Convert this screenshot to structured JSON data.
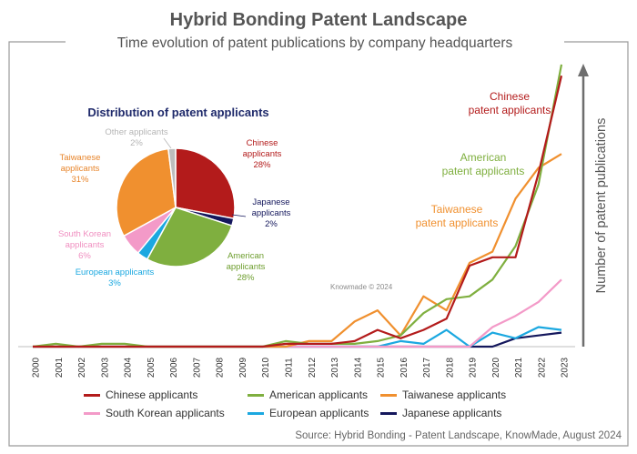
{
  "title": "Hybrid Bonding Patent Landscape",
  "subtitle": "Time evolution of patent publications by company headquarters",
  "source": "Source: Hybrid Bonding - Patent Landscape, KnowMade, August 2024",
  "watermark": "Knowmade © 2024",
  "colors": {
    "chinese": "#B31B1B",
    "american": "#7FAF3F",
    "taiwanese": "#F0902F",
    "south_korean": "#F39AC8",
    "european": "#1BA8E0",
    "japanese": "#14175C",
    "other": "#BDBDBD"
  },
  "chart_data": [
    {
      "type": "line",
      "title": "Time evolution of patent publications by company headquarters",
      "ylabel": "Number of patent publications",
      "xlabel": "",
      "x": [
        "2000",
        "2001",
        "2002",
        "2003",
        "2004",
        "2005",
        "2006",
        "2007",
        "2008",
        "2009",
        "2010",
        "2011",
        "2012",
        "2013",
        "2014",
        "2015",
        "2016",
        "2017",
        "2018",
        "2019",
        "2020",
        "2021",
        "2022",
        "2023"
      ],
      "ylim": [
        0,
        100
      ],
      "series": [
        {
          "name": "Chinese applicants",
          "key": "chinese",
          "values": [
            0,
            0,
            0,
            0,
            0,
            0,
            0,
            0,
            0,
            0,
            0,
            1,
            1,
            1,
            2,
            6,
            3,
            6,
            10,
            29,
            32,
            32,
            62,
            97
          ]
        },
        {
          "name": "American applicants",
          "key": "american",
          "values": [
            0,
            1,
            0,
            1,
            1,
            0,
            0,
            0,
            0,
            0,
            0,
            2,
            1,
            1,
            1,
            2,
            4,
            12,
            17,
            18,
            24,
            36,
            58,
            101
          ]
        },
        {
          "name": "Taiwanese applicants",
          "key": "taiwanese",
          "values": [
            0,
            0,
            0,
            0,
            0,
            0,
            0,
            0,
            0,
            0,
            0,
            0,
            2,
            2,
            9,
            13,
            4,
            18,
            13,
            30,
            34,
            53,
            64,
            69
          ]
        },
        {
          "name": "South Korean applicants",
          "key": "south_korean",
          "values": [
            0,
            0,
            0,
            0,
            0,
            0,
            0,
            0,
            0,
            0,
            0,
            0,
            0,
            0,
            0,
            0,
            0,
            0,
            0,
            0,
            7,
            11,
            16,
            24
          ]
        },
        {
          "name": "European applicants",
          "key": "european",
          "values": [
            0,
            0,
            0,
            0,
            0,
            0,
            0,
            0,
            0,
            0,
            0,
            0,
            0,
            0,
            0,
            0,
            2,
            1,
            6,
            0,
            5,
            3,
            7,
            6
          ]
        },
        {
          "name": "Japanese applicants",
          "key": "japanese",
          "values": [
            0,
            0,
            0,
            0,
            0,
            0,
            0,
            0,
            0,
            0,
            0,
            0,
            0,
            0,
            0,
            0,
            0,
            0,
            0,
            0,
            0,
            3,
            4,
            5
          ]
        }
      ],
      "annotations": [
        {
          "key": "chinese",
          "text": [
            "Chinese",
            "patent applicants"
          ]
        },
        {
          "key": "american",
          "text": [
            "American",
            "patent applicants"
          ]
        },
        {
          "key": "taiwanese",
          "text": [
            "Taiwanese",
            "patent applicants"
          ]
        }
      ]
    },
    {
      "type": "pie",
      "title": "Distribution of patent applicants",
      "slices": [
        {
          "key": "chinese",
          "label": [
            "Chinese",
            "applicants",
            "28%"
          ],
          "value": 28
        },
        {
          "key": "japanese",
          "label": [
            "Japanese",
            "applicants",
            "2%"
          ],
          "value": 2
        },
        {
          "key": "american",
          "label": [
            "American",
            "applicants",
            "28%"
          ],
          "value": 28
        },
        {
          "key": "european",
          "label": [
            "European applicants",
            "3%"
          ],
          "value": 3
        },
        {
          "key": "south_korean",
          "label": [
            "South Korean",
            "applicants",
            "6%"
          ],
          "value": 6
        },
        {
          "key": "taiwanese",
          "label": [
            "Taiwanese",
            "applicants",
            "31%"
          ],
          "value": 31
        },
        {
          "key": "other",
          "label": [
            "Other applicants",
            "2%"
          ],
          "value": 2
        }
      ]
    }
  ],
  "legend": [
    {
      "key": "chinese",
      "label": "Chinese applicants"
    },
    {
      "key": "american",
      "label": "American applicants"
    },
    {
      "key": "taiwanese",
      "label": "Taiwanese applicants"
    },
    {
      "key": "south_korean",
      "label": "South Korean applicants"
    },
    {
      "key": "european",
      "label": "European applicants"
    },
    {
      "key": "japanese",
      "label": "Japanese applicants"
    }
  ]
}
